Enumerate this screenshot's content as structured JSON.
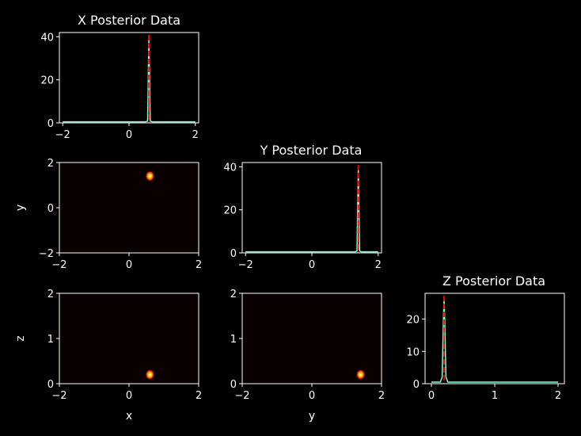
{
  "figure": {
    "background": "#000000",
    "foreground": "#ffffff",
    "line_color": "#7fffd4",
    "marker_color": "#ff0000"
  },
  "chart_data": [
    {
      "id": "x-hist",
      "type": "line",
      "title": "X Posterior Data",
      "xlim": [
        -2.1,
        2.1
      ],
      "ylim": [
        0,
        42
      ],
      "xticks": [
        -2,
        0,
        2
      ],
      "yticks": [
        0,
        20,
        40
      ],
      "xlabel": "",
      "ylabel": "",
      "grid": false,
      "series": [
        {
          "x": [
            -2.0,
            0.5,
            0.56,
            0.58,
            0.6,
            0.62,
            0.64,
            0.7,
            2.0
          ],
          "y": [
            0.5,
            0.5,
            0.8,
            20,
            40,
            20,
            0.8,
            0.5,
            0.5
          ]
        }
      ],
      "vline": 0.6
    },
    {
      "id": "y-hist",
      "type": "line",
      "title": "Y Posterior Data",
      "xlim": [
        -2.1,
        2.1
      ],
      "ylim": [
        0,
        42
      ],
      "xticks": [
        -2,
        0,
        2
      ],
      "yticks": [
        0,
        20,
        40
      ],
      "xlabel": "",
      "ylabel": "",
      "grid": false,
      "series": [
        {
          "x": [
            -2.0,
            1.3,
            1.36,
            1.38,
            1.4,
            1.42,
            1.44,
            1.5,
            2.0
          ],
          "y": [
            0.5,
            0.5,
            0.8,
            20,
            40,
            20,
            0.8,
            0.5,
            0.5
          ]
        }
      ],
      "vline": 1.4
    },
    {
      "id": "z-hist",
      "type": "line",
      "title": "Z Posterior Data",
      "xlim": [
        -0.1,
        2.1
      ],
      "ylim": [
        0,
        28
      ],
      "xticks": [
        0,
        1,
        2
      ],
      "yticks": [
        0,
        10,
        20
      ],
      "xlabel": "",
      "ylabel": "",
      "grid": false,
      "series": [
        {
          "x": [
            0.0,
            0.14,
            0.17,
            0.19,
            0.2,
            0.21,
            0.23,
            0.26,
            2.0
          ],
          "y": [
            0.5,
            0.5,
            2,
            20,
            26,
            20,
            2,
            0.5,
            0.5
          ]
        }
      ],
      "vline": 0.2
    },
    {
      "id": "xy-heat",
      "type": "heatmap",
      "title": "",
      "xlim": [
        -2,
        2
      ],
      "ylim": [
        -2,
        2
      ],
      "xticks": [
        -2,
        0,
        2
      ],
      "yticks": [
        -2,
        0,
        2
      ],
      "xlabel": "",
      "ylabel": "y",
      "grid": false,
      "background": "#0a0000",
      "peak": {
        "x": 0.6,
        "y": 1.4
      }
    },
    {
      "id": "xz-heat",
      "type": "heatmap",
      "title": "",
      "xlim": [
        -2,
        2
      ],
      "ylim": [
        0,
        2
      ],
      "xticks": [
        -2,
        0,
        2
      ],
      "yticks": [
        0,
        1,
        2
      ],
      "xlabel": "x",
      "ylabel": "z",
      "grid": false,
      "background": "#0a0000",
      "peak": {
        "x": 0.6,
        "y": 0.2
      }
    },
    {
      "id": "yz-heat",
      "type": "heatmap",
      "title": "",
      "xlim": [
        -2,
        2
      ],
      "ylim": [
        0,
        2
      ],
      "xticks": [
        -2,
        0,
        2
      ],
      "yticks": [
        0,
        1,
        2
      ],
      "xlabel": "y",
      "ylabel": "",
      "grid": false,
      "background": "#0a0000",
      "peak": {
        "x": 1.4,
        "y": 0.2
      }
    }
  ]
}
